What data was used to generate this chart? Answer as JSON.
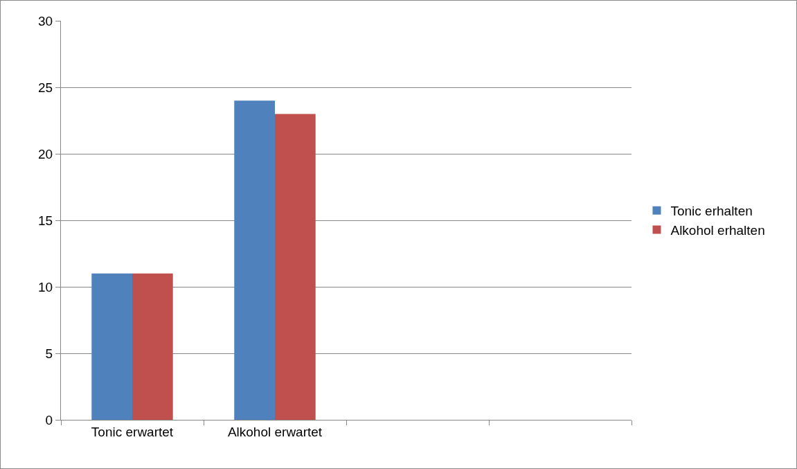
{
  "chart_data": {
    "type": "bar",
    "categories": [
      "Tonic erwartet",
      "Alkohol erwartet",
      null,
      null
    ],
    "series": [
      {
        "name": "Tonic erhalten",
        "color": "#4f81bd",
        "values": [
          11,
          24,
          null,
          null
        ]
      },
      {
        "name": "Alkohol erhalten",
        "color": "#c0504d",
        "values": [
          11,
          23,
          null,
          null
        ]
      }
    ],
    "ylim": [
      0,
      30
    ],
    "yticks": [
      0,
      5,
      10,
      15,
      20,
      25,
      30
    ],
    "grid": "y",
    "legend": "right"
  }
}
